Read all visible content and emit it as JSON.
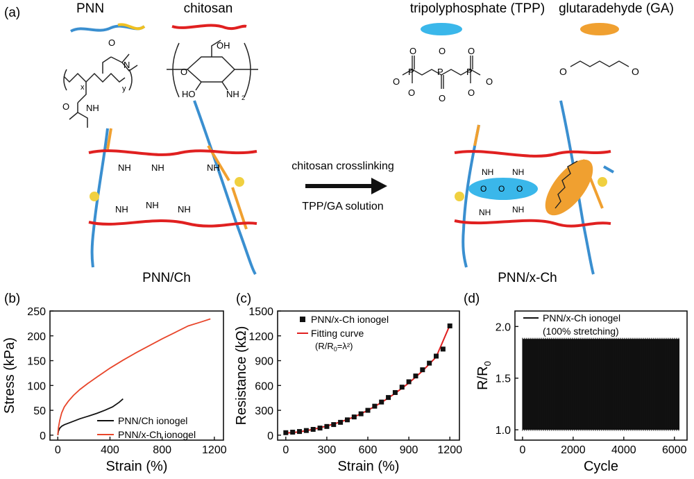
{
  "panels": {
    "a": {
      "label": "(a)",
      "pnn_label": "PNN",
      "chitosan_label": "chitosan",
      "tpp_label": "tripolyphosphate (TPP)",
      "ga_label": "glutaradehyde (GA)",
      "arrow_top": "chitosan crosslinking",
      "arrow_bottom": "TPP/GA solution",
      "left_caption": "PNN/Ch",
      "right_caption": "PNN/x-Ch",
      "x_sub": "x",
      "y_sub": "y",
      "nh2": "NH",
      "nh3": "NH",
      "nh": "NH",
      "n": "N",
      "o": "O",
      "oh": "OH",
      "ho": "HO",
      "p": "P",
      "neg_o": "O",
      "sub2": "2",
      "sub3": "3",
      "plus": "+",
      "minus": "-"
    },
    "b": {
      "label": "(b)"
    },
    "c": {
      "label": "(c)"
    },
    "d": {
      "label": "(d)"
    }
  },
  "colors": {
    "chitosan_red": "#e02020",
    "pnn_blue": "#3a8fd0",
    "pnn_yellow": "#f0c020",
    "tpp_cyan": "#3ab7ea",
    "ga_orange": "#f0a030",
    "curve_black": "#111111",
    "curve_red": "#e8452a",
    "square_black": "#111111",
    "fit_red": "#e02020"
  },
  "chart_data": [
    {
      "panel": "b",
      "type": "line",
      "xlabel": "Strain (%)",
      "ylabel": "Stress (kPa)",
      "xlim": [
        -60,
        1270
      ],
      "ylim": [
        -10,
        250
      ],
      "xticks": [
        "0",
        "400",
        "800",
        "1200"
      ],
      "xtick_values": [
        0,
        400,
        800,
        1200
      ],
      "yticks": [
        "0",
        "50",
        "100",
        "150",
        "200",
        "250"
      ],
      "ytick_values": [
        0,
        50,
        100,
        150,
        200,
        250
      ],
      "legend_position": "bottom-right",
      "series": [
        {
          "name": "PNN/Ch ionogel",
          "color": "#111111",
          "x": [
            0,
            5,
            15,
            30,
            50,
            80,
            120,
            170,
            230,
            300,
            360,
            420,
            470,
            500
          ],
          "y": [
            0,
            8,
            14,
            18,
            21,
            24,
            28,
            33,
            38,
            44,
            50,
            57,
            66,
            73
          ]
        },
        {
          "name": "PNN/x-Ch ionogel",
          "color": "#e8452a",
          "x": [
            0,
            5,
            15,
            30,
            50,
            80,
            120,
            170,
            230,
            300,
            400,
            500,
            600,
            700,
            800,
            900,
            1000,
            1100,
            1170
          ],
          "y": [
            0,
            15,
            30,
            45,
            57,
            68,
            80,
            92,
            104,
            117,
            135,
            151,
            166,
            180,
            194,
            207,
            220,
            228,
            234
          ]
        }
      ]
    },
    {
      "panel": "c",
      "type": "scatter",
      "xlabel": "Strain (%)",
      "ylabel": "Resistance (kΩ)",
      "xlim": [
        -60,
        1270
      ],
      "ylim": [
        -60,
        1500
      ],
      "xticks": [
        "0",
        "300",
        "600",
        "900",
        "1200"
      ],
      "xtick_values": [
        0,
        300,
        600,
        900,
        1200
      ],
      "yticks": [
        "0",
        "300",
        "600",
        "900",
        "1200",
        "1500"
      ],
      "ytick_values": [
        0,
        300,
        600,
        900,
        1200,
        1500
      ],
      "legend_position": "top-left",
      "series": [
        {
          "name": "PNN/x-Ch ionogel",
          "marker": "square",
          "color": "#111111",
          "x": [
            0,
            50,
            100,
            150,
            200,
            250,
            300,
            350,
            400,
            450,
            500,
            550,
            600,
            650,
            700,
            750,
            800,
            850,
            900,
            950,
            1000,
            1050,
            1100,
            1150,
            1200
          ],
          "y": [
            30,
            36,
            44,
            56,
            70,
            86,
            105,
            128,
            155,
            185,
            220,
            258,
            300,
            350,
            400,
            455,
            515,
            580,
            645,
            715,
            790,
            870,
            955,
            1040,
            1320
          ]
        },
        {
          "name": "Fitting curve",
          "name_line2": "(R/R",
          "name_line2_sub": "0",
          "name_line2_tail": "=λ²)",
          "color": "#e02020",
          "x": [
            0,
            100,
            200,
            300,
            400,
            500,
            600,
            700,
            800,
            900,
            1000,
            1100,
            1200
          ],
          "y": [
            25,
            40,
            70,
            110,
            160,
            220,
            300,
            395,
            505,
            630,
            775,
            945,
            1330
          ]
        }
      ]
    },
    {
      "panel": "d",
      "type": "line",
      "xlabel": "Cycle",
      "ylabel": "R/R",
      "ylabel_sub": "0",
      "xlim": [
        -300,
        6500
      ],
      "ylim": [
        0.9,
        2.15
      ],
      "xticks": [
        "0",
        "2000",
        "4000",
        "6000"
      ],
      "xtick_values": [
        0,
        2000,
        4000,
        6000
      ],
      "yticks": [
        "1.0",
        "1.5",
        "2.0"
      ],
      "ytick_values": [
        1.0,
        1.5,
        2.0
      ],
      "legend_position": "top-left",
      "series": [
        {
          "name": "PNN/x-Ch ionogel",
          "note": "(100% stretching)",
          "color": "#111111",
          "cycles": [
            0,
            6200
          ],
          "min": 1.0,
          "max": 1.88
        }
      ]
    }
  ]
}
